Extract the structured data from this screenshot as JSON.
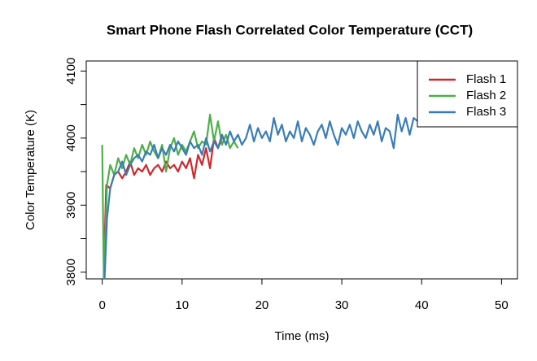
{
  "chart_data": {
    "type": "line",
    "title": "Smart Phone Flash Correlated Color Temperature (CCT)",
    "x_label": "Time (ms)",
    "y_label": "Color Temperature (K)",
    "xlim": [
      -2,
      52
    ],
    "xticks": [
      0,
      10,
      20,
      30,
      40,
      50
    ],
    "ylim": [
      3790,
      4115
    ],
    "yticks": [
      3800,
      3900,
      4000,
      4100
    ],
    "yminor_ticks": [
      3850,
      3950,
      4050
    ],
    "legend": "top-right",
    "series": [
      {
        "name": "Flash 1",
        "color": "#cc2a2f",
        "x": [
          0.2,
          0.5,
          1,
          1.5,
          2,
          2.5,
          3,
          3.5,
          4,
          4.5,
          5,
          5.5,
          6,
          6.5,
          7,
          7.5,
          8,
          8.5,
          9,
          9.5,
          10,
          10.5,
          11,
          11.5,
          12,
          12.5,
          13,
          13.5,
          14,
          14.5,
          15
        ],
        "values": [
          3800,
          3930,
          3925,
          3945,
          3950,
          3940,
          3950,
          3965,
          3945,
          3955,
          3950,
          3960,
          3945,
          3955,
          3960,
          3950,
          3965,
          3955,
          3960,
          3950,
          3965,
          3955,
          3970,
          3940,
          3975,
          3960,
          3985,
          3955,
          4000,
          3985,
          4000
        ]
      },
      {
        "name": "Flash 2",
        "color": "#4daf4a",
        "x": [
          0,
          0.2,
          0.6,
          1,
          1.5,
          2,
          2.5,
          3,
          3.5,
          4,
          4.5,
          5,
          5.5,
          6,
          6.5,
          7,
          7.5,
          8,
          8.5,
          9,
          9.5,
          10,
          10.5,
          11,
          11.5,
          12,
          12.5,
          13,
          13.5,
          14,
          14.5,
          15,
          15.5,
          16,
          16.5,
          17
        ],
        "values": [
          3990,
          3790,
          3930,
          3960,
          3945,
          3970,
          3955,
          3975,
          3960,
          3985,
          3970,
          3990,
          3975,
          3995,
          3980,
          3970,
          3990,
          3950,
          3985,
          4000,
          3975,
          3990,
          3980,
          3995,
          4010,
          3985,
          3995,
          3990,
          4035,
          3995,
          4025,
          3990,
          4005,
          3985,
          3995,
          3985
        ]
      },
      {
        "name": "Flash 3",
        "color": "#3a7db5",
        "x": [
          0.3,
          0.6,
          1,
          1.5,
          2,
          2.5,
          3,
          3.5,
          4,
          4.5,
          5,
          5.5,
          6,
          6.5,
          7,
          7.5,
          8,
          8.5,
          9,
          9.5,
          10,
          10.5,
          11,
          11.5,
          12,
          12.5,
          13,
          13.5,
          14,
          14.5,
          15,
          15.5,
          16,
          16.5,
          17,
          17.5,
          18,
          18.5,
          19,
          19.5,
          20,
          20.5,
          21,
          21.5,
          22,
          22.5,
          23,
          23.5,
          24,
          24.5,
          25,
          25.5,
          26,
          26.5,
          27,
          27.5,
          28,
          28.5,
          29,
          29.5,
          30,
          30.5,
          31,
          31.5,
          32,
          32.5,
          33,
          33.5,
          34,
          34.5,
          35,
          35.5,
          36,
          36.5,
          37,
          37.5,
          38,
          38.5,
          39,
          39.5
        ],
        "values": [
          3790,
          3880,
          3925,
          3945,
          3950,
          3965,
          3945,
          3960,
          3970,
          3975,
          3965,
          3980,
          3975,
          3990,
          3970,
          3985,
          3975,
          3990,
          3980,
          3995,
          3985,
          3975,
          3995,
          3985,
          3990,
          3975,
          4000,
          3980,
          3995,
          3985,
          4005,
          3990,
          4010,
          3995,
          4005,
          3990,
          4000,
          4020,
          3995,
          4015,
          4000,
          4010,
          3995,
          4030,
          4005,
          4020,
          3995,
          4010,
          4000,
          4025,
          3995,
          4015,
          4005,
          3990,
          4010,
          4020,
          4000,
          4025,
          4005,
          3990,
          4015,
          4005,
          4020,
          4000,
          4025,
          4010,
          4000,
          4020,
          4005,
          4025,
          3995,
          4015,
          4010,
          3985,
          4035,
          4010,
          4030,
          4005,
          4030,
          4025
        ]
      }
    ]
  }
}
